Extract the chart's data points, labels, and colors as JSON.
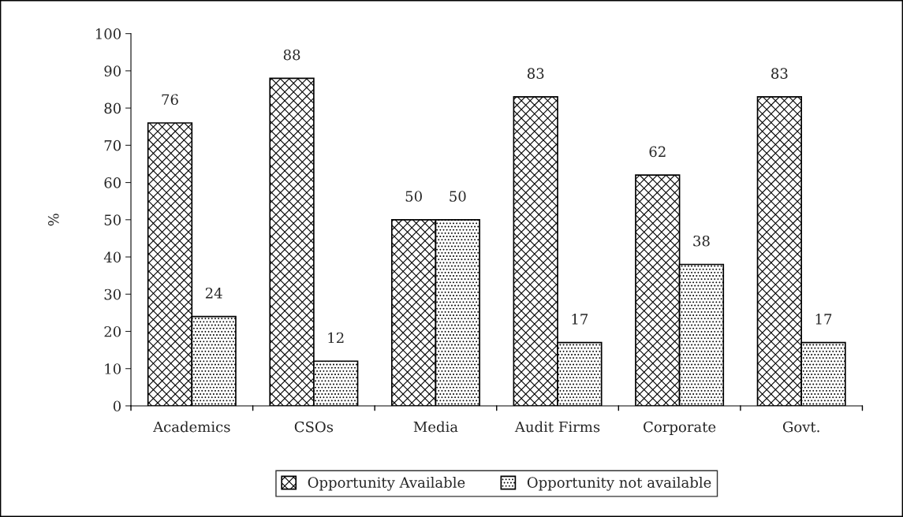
{
  "chart_data": {
    "type": "bar",
    "ylabel": "%",
    "categories": [
      "Academics",
      "CSOs",
      "Media",
      "Audit Firms",
      "Corporate",
      "Govt."
    ],
    "series": [
      {
        "name": "Opportunity Available",
        "color": "#000000",
        "values": [
          76,
          88,
          50,
          83,
          62,
          83
        ]
      },
      {
        "name": "Opportunity not available",
        "color": "#000000",
        "values": [
          24,
          12,
          50,
          17,
          38,
          17
        ]
      }
    ],
    "ylim": [
      0,
      100
    ],
    "yticks": [
      0,
      10,
      20,
      30,
      40,
      50,
      60,
      70,
      80,
      90,
      100
    ],
    "data_labels": true,
    "legend": "bottom",
    "grid": false
  }
}
